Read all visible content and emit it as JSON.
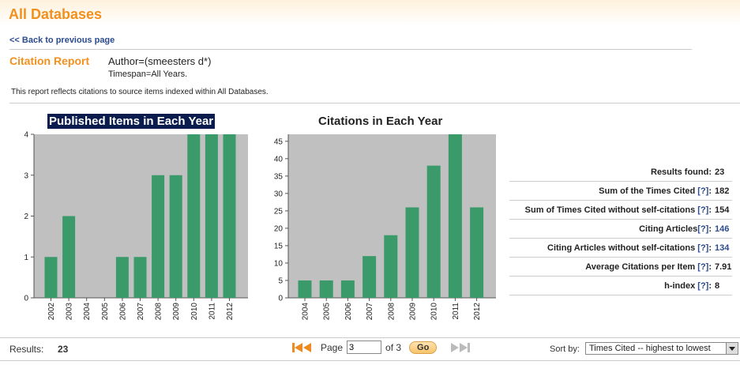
{
  "header": {
    "title": "All Databases"
  },
  "nav": {
    "back_link": "<< Back to previous page"
  },
  "report": {
    "label": "Citation Report",
    "query": "Author=(smeesters d*)",
    "timespan": "Timespan=All Years.",
    "note": "This report reflects citations to source items indexed within All Databases."
  },
  "chart_data": [
    {
      "type": "bar",
      "title": "Published Items in Each Year",
      "categories": [
        "2002",
        "2003",
        "2004",
        "2005",
        "2006",
        "2007",
        "2008",
        "2009",
        "2010",
        "2011",
        "2012"
      ],
      "values": [
        1,
        2,
        0,
        0,
        1,
        1,
        3,
        3,
        4,
        4,
        4
      ],
      "ylim": [
        0,
        4
      ],
      "yticks": [
        0,
        1,
        2,
        3,
        4
      ],
      "grid": false,
      "colors": {
        "bar": "#3a9a6a",
        "plot_bg": "#c0c0c0"
      }
    },
    {
      "type": "bar",
      "title": "Citations in Each Year",
      "categories": [
        "2004",
        "2005",
        "2006",
        "2007",
        "2008",
        "2009",
        "2010",
        "2011",
        "2012"
      ],
      "values": [
        5,
        5,
        5,
        12,
        18,
        26,
        38,
        47,
        26
      ],
      "ylim": [
        0,
        47
      ],
      "yticks": [
        0,
        5,
        10,
        15,
        20,
        25,
        30,
        35,
        40,
        45
      ],
      "grid": false,
      "colors": {
        "bar": "#3a9a6a",
        "plot_bg": "#c0c0c0"
      }
    }
  ],
  "stats": {
    "results_found_label": "Results found:",
    "results_found": "23",
    "sum_cited_label": "Sum of the Times Cited",
    "sum_cited": "182",
    "sum_wo_self_label": "Sum of Times Cited without self-citations",
    "sum_wo_self": "154",
    "citing_label": "Citing Articles",
    "citing": "146",
    "citing_wo_self_label": "Citing Articles without self-citations",
    "citing_wo_self": "134",
    "avg_label": "Average Citations per Item",
    "avg": "7.91",
    "hindex_label": "h-index",
    "hindex": "8",
    "help": "[?]",
    "colon": ":"
  },
  "footer": {
    "results_label": "Results:",
    "results": "23",
    "page_label": "Page",
    "page_value": "3",
    "of_label": "of 3",
    "go": "Go",
    "sort_label": "Sort by:",
    "sort_value": "Times Cited -- highest to lowest"
  }
}
